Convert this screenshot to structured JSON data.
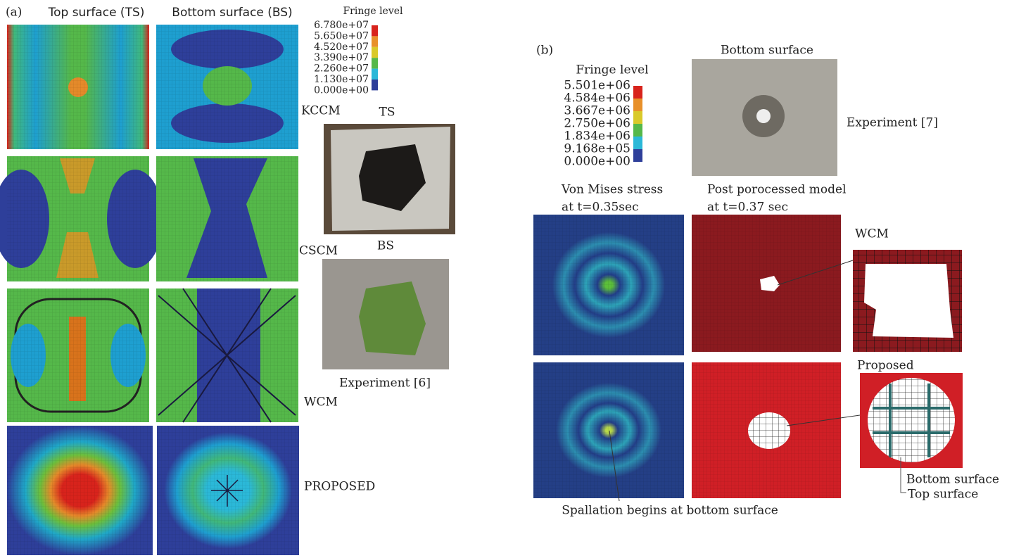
{
  "panel_a": {
    "label": "(a)",
    "column_headers": [
      "Top surface (TS)",
      "Bottom surface (BS)"
    ],
    "fringe": {
      "title": "Fringe level",
      "levels": [
        "6.780e+07",
        "5.650e+07",
        "4.520e+07",
        "3.390e+07",
        "2.260e+07",
        "1.130e+07",
        "0.000e+00"
      ]
    },
    "row_labels": [
      "KCCM",
      "CSCM",
      "WCM",
      "PROPOSED"
    ],
    "photo_labels": [
      "TS",
      "BS"
    ],
    "experiment": "Experiment [6]"
  },
  "panel_b": {
    "label": "(b)",
    "fringe": {
      "title": "Fringe level",
      "levels": [
        "5.501e+06",
        "4.584e+06",
        "3.667e+06",
        "2.750e+06",
        "1.834e+06",
        "9.168e+05",
        "0.000e+00"
      ]
    },
    "photo_title": "Bottom surface",
    "experiment": "Experiment [7]",
    "column_headers": [
      [
        "Von Mises stress",
        "at t=0.35sec"
      ],
      [
        "Post porocessed model",
        "at t=0.37 sec"
      ]
    ],
    "zoom_labels": [
      "WCM",
      "Proposed"
    ],
    "surface_labels": [
      "Bottom surface",
      "Top surface"
    ],
    "annotation": "Spallation begins at bottom surface"
  }
}
